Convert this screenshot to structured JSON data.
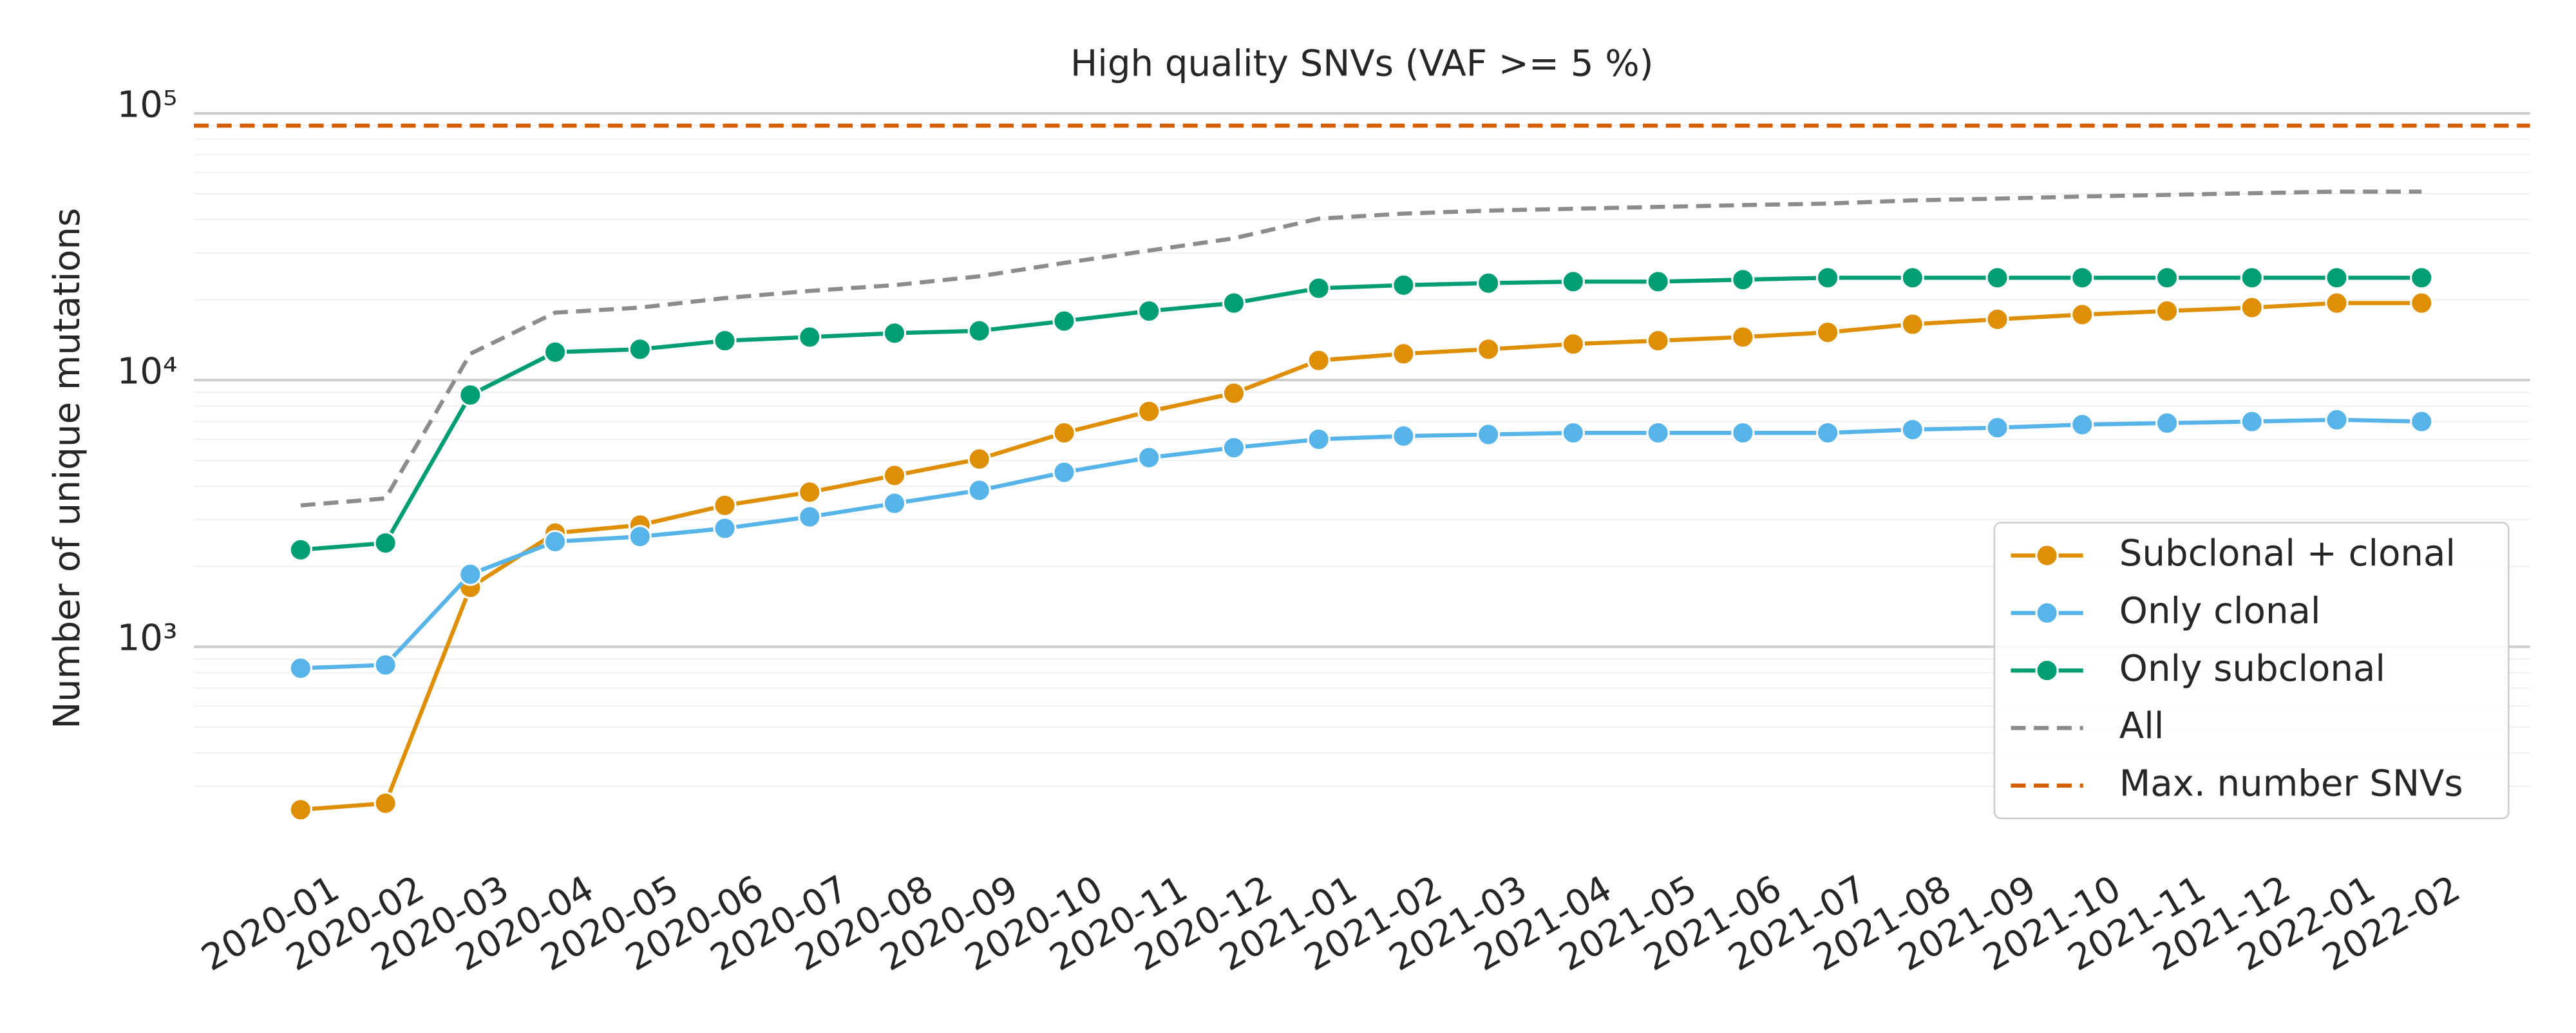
{
  "chart_data": {
    "type": "line",
    "title": "High quality SNVs (VAF >= 5 %)",
    "y_label": "Number of unique mutations",
    "y_scale": "log",
    "ylim": [
      200,
      100000
    ],
    "yticks": [
      {
        "value": 1000,
        "label": "10³"
      },
      {
        "value": 10000,
        "label": "10⁴"
      },
      {
        "value": 100000,
        "label": "10⁵"
      }
    ],
    "minor_yticks": [
      300,
      400,
      500,
      600,
      700,
      800,
      900,
      2000,
      3000,
      4000,
      5000,
      6000,
      7000,
      8000,
      9000,
      20000,
      30000,
      40000,
      50000,
      60000,
      70000,
      80000,
      90000
    ],
    "grid": true,
    "legend": "lower right",
    "categories": [
      "2020-01",
      "2020-02",
      "2020-03",
      "2020-04",
      "2020-05",
      "2020-06",
      "2020-07",
      "2020-08",
      "2020-09",
      "2020-10",
      "2020-11",
      "2020-12",
      "2021-01",
      "2021-02",
      "2021-03",
      "2021-04",
      "2021-05",
      "2021-06",
      "2021-07",
      "2021-08",
      "2021-09",
      "2021-10",
      "2021-11",
      "2021-12",
      "2022-01",
      "2022-02"
    ],
    "series": [
      {
        "name": "Subclonal + clonal",
        "color": "#de8f05",
        "linestyle": "solid",
        "marker": true,
        "values": [
          245,
          259,
          1670,
          2670,
          2860,
          3390,
          3800,
          4390,
          5060,
          6340,
          7630,
          8930,
          11850,
          12550,
          13050,
          13650,
          14050,
          14500,
          15100,
          16200,
          16900,
          17600,
          18150,
          18700,
          19450,
          19450
        ]
      },
      {
        "name": "Only clonal",
        "color": "#56b4e9",
        "linestyle": "solid",
        "marker": true,
        "values": [
          831,
          855,
          1870,
          2480,
          2590,
          2780,
          3070,
          3450,
          3860,
          4510,
          5120,
          5580,
          6000,
          6170,
          6250,
          6340,
          6340,
          6340,
          6340,
          6520,
          6630,
          6810,
          6900,
          6990,
          7100,
          6990
        ]
      },
      {
        "name": "Only subclonal",
        "color": "#029e73",
        "linestyle": "solid",
        "marker": true,
        "values": [
          2310,
          2450,
          8790,
          12730,
          13050,
          14050,
          14500,
          15000,
          15300,
          16650,
          18150,
          19450,
          22100,
          22700,
          23100,
          23400,
          23400,
          23800,
          24200,
          24200,
          24200,
          24200,
          24200,
          24200,
          24200,
          24200
        ]
      },
      {
        "name": "All",
        "color": "#8c8c8c",
        "linestyle": "dashed",
        "marker": false,
        "values": [
          3390,
          3600,
          12550,
          17900,
          18700,
          20300,
          21600,
          22700,
          24500,
          27500,
          30600,
          34000,
          40300,
          42100,
          43200,
          43900,
          44600,
          45300,
          45900,
          47200,
          47900,
          48800,
          49500,
          50200,
          50900,
          50900
        ]
      }
    ],
    "hlines": [
      {
        "name": "Max. number SNVs",
        "color": "#d55e00",
        "linestyle": "dashed",
        "value": 90000
      }
    ]
  }
}
